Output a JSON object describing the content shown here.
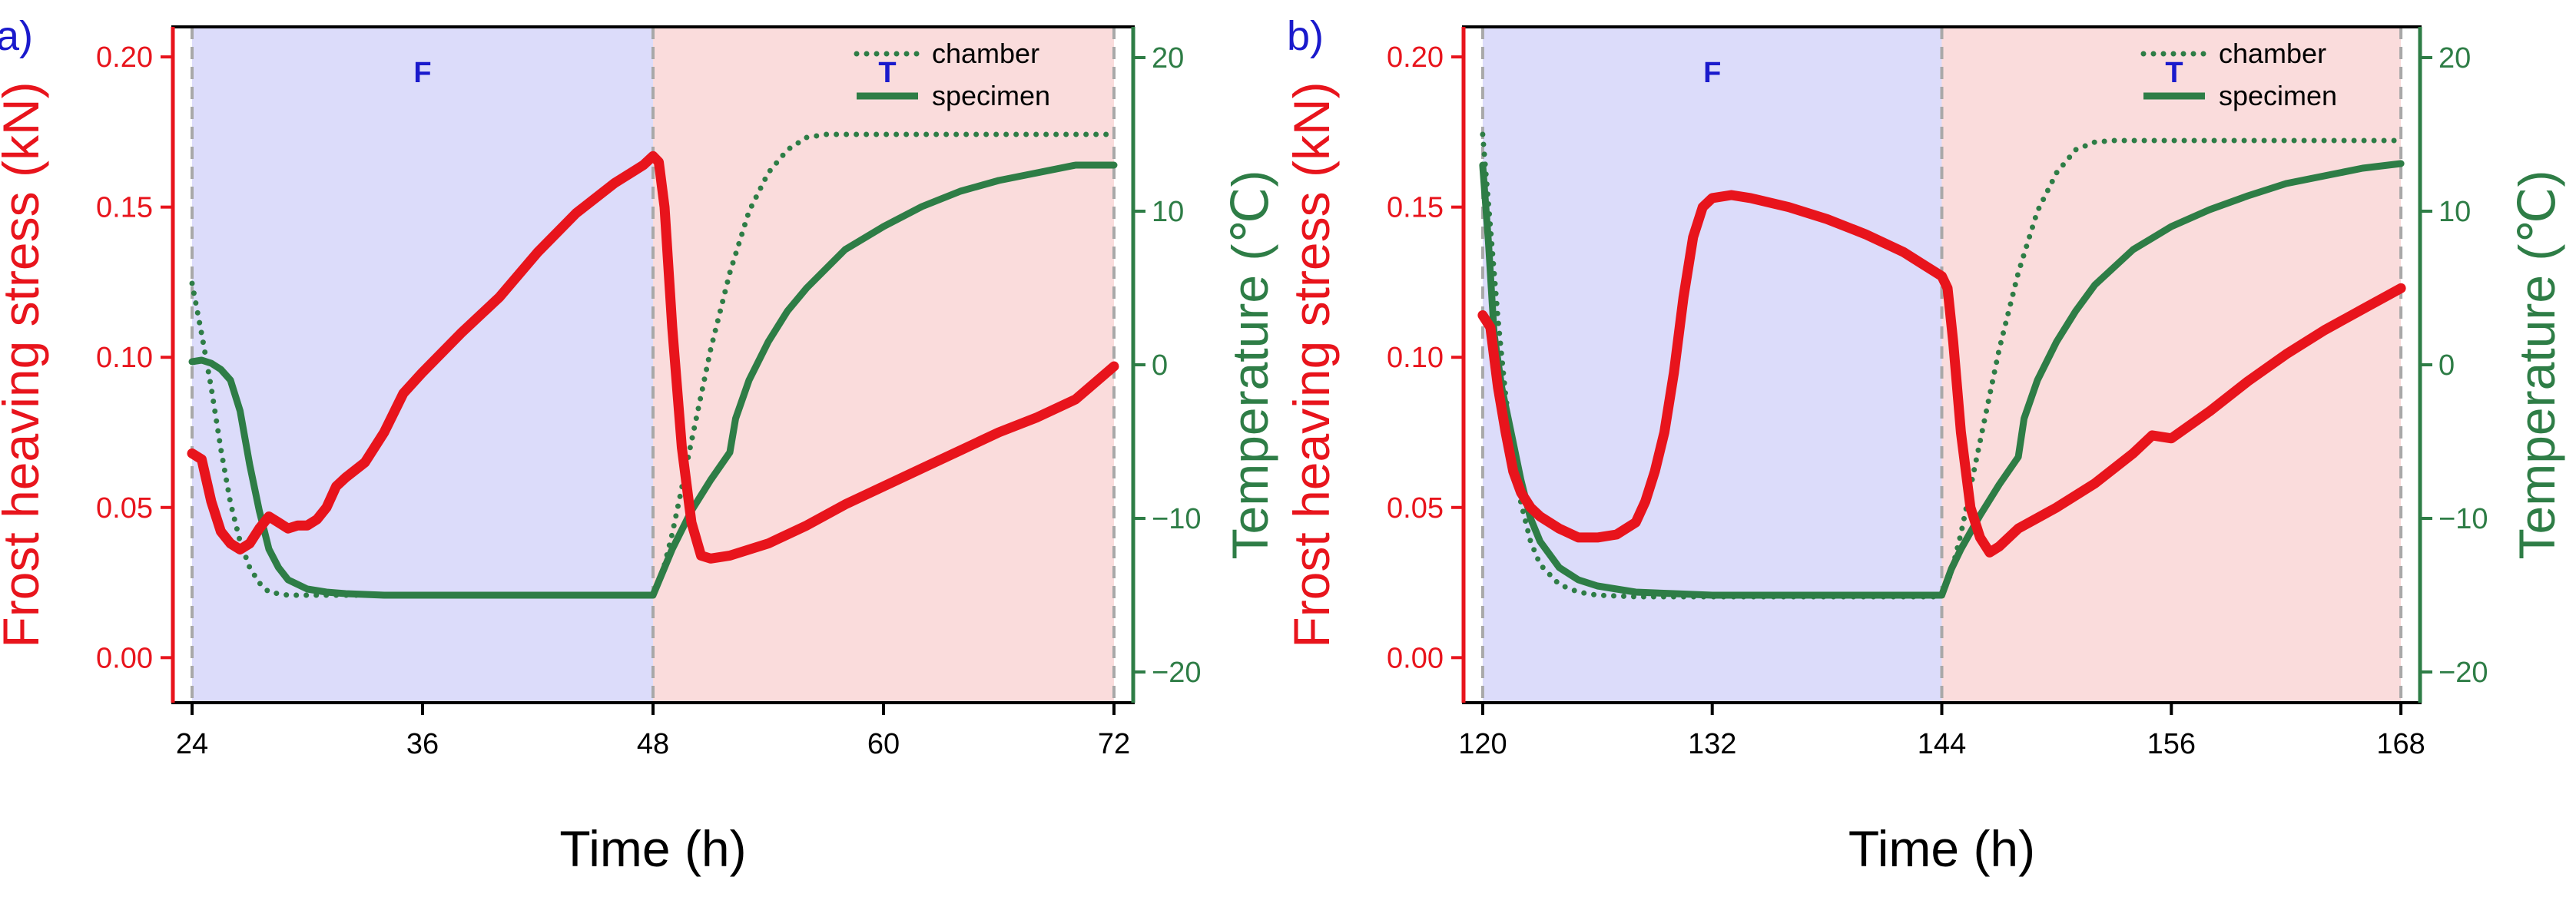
{
  "figure_title": "",
  "colors": {
    "stress": "#e8141c",
    "temperature": "#2e7d46",
    "freeze_shade": "#dcdcfa",
    "thaw_shade": "#fadcdc",
    "phase_label": "#1a1acc",
    "divider": "#a8a8a8",
    "panel_label": "#1a1acc"
  },
  "chart_data": [
    {
      "type": "line",
      "panel_label": "a)",
      "xlabel": "Time (h)",
      "ylabel_left": "Frost heaving stress (kN)",
      "ylabel_right": "Temperature (℃)",
      "xlim": [
        23,
        73
      ],
      "ylim_left": [
        -0.015,
        0.21
      ],
      "ylim_right": [
        -22,
        22
      ],
      "x_ticks": [
        24,
        36,
        48,
        60,
        72
      ],
      "y_left_ticks": [
        0.0,
        0.05,
        0.1,
        0.15,
        0.2
      ],
      "y_left_tick_labels": [
        "0.00",
        "0.05",
        "0.10",
        "0.15",
        "0.20"
      ],
      "y_right_ticks": [
        -20,
        -10,
        0,
        10,
        20
      ],
      "y_right_tick_labels": [
        "−20",
        "−10",
        "0",
        "10",
        "20"
      ],
      "phases": [
        {
          "label": "F",
          "x_start": 24,
          "x_end": 48
        },
        {
          "label": "T",
          "x_start": 48,
          "x_end": 72
        }
      ],
      "legend": {
        "position": "top-right",
        "entries": [
          "chamber",
          "specimen"
        ]
      },
      "series": [
        {
          "name": "Frost heaving stress",
          "axis": "left",
          "style": "thick-solid",
          "x": [
            24,
            24.5,
            25,
            25.5,
            26,
            26.5,
            27,
            27.5,
            28,
            28.5,
            29,
            29.5,
            30,
            30.5,
            31,
            31.5,
            32,
            33,
            34,
            35,
            36,
            38,
            40,
            42,
            44,
            46,
            47,
            47.5,
            48,
            48.3,
            48.6,
            49,
            49.5,
            50,
            50.5,
            51,
            52,
            54,
            56,
            58,
            60,
            62,
            64,
            66,
            68,
            70,
            72
          ],
          "y": [
            0.068,
            0.066,
            0.052,
            0.042,
            0.038,
            0.036,
            0.038,
            0.043,
            0.047,
            0.045,
            0.043,
            0.044,
            0.044,
            0.046,
            0.05,
            0.057,
            0.06,
            0.065,
            0.075,
            0.088,
            0.095,
            0.108,
            0.12,
            0.135,
            0.148,
            0.158,
            0.162,
            0.164,
            0.167,
            0.165,
            0.15,
            0.11,
            0.07,
            0.045,
            0.034,
            0.033,
            0.034,
            0.038,
            0.044,
            0.051,
            0.057,
            0.063,
            0.069,
            0.075,
            0.08,
            0.086,
            0.097
          ]
        },
        {
          "name": "chamber",
          "axis": "right",
          "style": "dotted",
          "x": [
            24,
            24.5,
            25,
            25.5,
            26,
            26.5,
            27,
            27.5,
            28,
            29,
            30,
            32,
            36,
            40,
            44,
            48,
            48.5,
            49,
            50,
            51,
            52,
            53,
            54,
            55,
            56,
            57,
            58,
            60,
            64,
            68,
            72
          ],
          "y": [
            5.3,
            2,
            -1.5,
            -5.5,
            -9,
            -11.5,
            -13.2,
            -14.2,
            -14.8,
            -15,
            -15,
            -15,
            -15,
            -15,
            -15,
            -15,
            -13.5,
            -11,
            -5,
            1,
            6,
            10,
            12.5,
            14,
            14.8,
            15,
            15,
            15,
            15,
            15,
            15
          ]
        },
        {
          "name": "specimen",
          "axis": "right",
          "style": "thick-solid",
          "x": [
            24,
            24.5,
            25,
            25.5,
            26,
            26.5,
            27,
            27.5,
            28,
            28.5,
            29,
            30,
            31,
            32,
            34,
            36,
            40,
            44,
            48,
            48.5,
            49,
            50,
            51,
            52,
            52.3,
            53,
            54,
            55,
            56,
            58,
            60,
            62,
            64,
            66,
            68,
            70,
            72
          ],
          "y": [
            0.2,
            0.3,
            0.1,
            -0.3,
            -1,
            -3,
            -6.5,
            -9.5,
            -12,
            -13.2,
            -14,
            -14.6,
            -14.8,
            -14.9,
            -15,
            -15,
            -15,
            -15,
            -15,
            -13.5,
            -12,
            -9.5,
            -7.5,
            -5.7,
            -3.5,
            -1,
            1.5,
            3.5,
            5,
            7.5,
            9,
            10.3,
            11.3,
            12,
            12.5,
            13,
            13
          ]
        }
      ]
    },
    {
      "type": "line",
      "panel_label": "b)",
      "xlabel": "Time (h)",
      "ylabel_left": "Frost heaving stress (kN)",
      "ylabel_right": "Temperature (℃)",
      "xlim": [
        119,
        169
      ],
      "ylim_left": [
        -0.015,
        0.21
      ],
      "ylim_right": [
        -22,
        22
      ],
      "x_ticks": [
        120,
        132,
        144,
        156,
        168
      ],
      "y_left_ticks": [
        0.0,
        0.05,
        0.1,
        0.15,
        0.2
      ],
      "y_left_tick_labels": [
        "0.00",
        "0.05",
        "0.10",
        "0.15",
        "0.20"
      ],
      "y_right_ticks": [
        -20,
        -10,
        0,
        10,
        20
      ],
      "y_right_tick_labels": [
        "−20",
        "−10",
        "0",
        "10",
        "20"
      ],
      "phases": [
        {
          "label": "F",
          "x_start": 120,
          "x_end": 144
        },
        {
          "label": "T",
          "x_start": 144,
          "x_end": 168
        }
      ],
      "legend": {
        "position": "top-right",
        "entries": [
          "chamber",
          "specimen"
        ]
      },
      "series": [
        {
          "name": "Frost heaving stress",
          "axis": "left",
          "style": "thick-solid",
          "x": [
            120,
            120.4,
            120.8,
            121.2,
            121.6,
            122,
            122.5,
            123,
            124,
            125,
            126,
            127,
            128,
            128.5,
            129,
            129.5,
            130,
            130.5,
            131,
            131.5,
            132,
            133,
            134,
            136,
            138,
            140,
            142,
            143,
            144,
            144.3,
            144.6,
            145,
            145.5,
            146,
            146.5,
            147,
            148,
            150,
            152,
            154,
            155,
            156,
            158,
            160,
            162,
            164,
            166,
            168
          ],
          "y": [
            0.114,
            0.11,
            0.09,
            0.075,
            0.062,
            0.055,
            0.05,
            0.047,
            0.043,
            0.04,
            0.04,
            0.041,
            0.045,
            0.052,
            0.062,
            0.075,
            0.095,
            0.12,
            0.14,
            0.15,
            0.153,
            0.154,
            0.153,
            0.15,
            0.146,
            0.141,
            0.135,
            0.131,
            0.127,
            0.123,
            0.105,
            0.075,
            0.05,
            0.04,
            0.035,
            0.037,
            0.043,
            0.05,
            0.058,
            0.068,
            0.074,
            0.073,
            0.082,
            0.092,
            0.101,
            0.109,
            0.116,
            0.123
          ]
        },
        {
          "name": "chamber",
          "axis": "right",
          "style": "dotted",
          "x": [
            120,
            120.4,
            120.8,
            121.2,
            121.6,
            122,
            122.5,
            123,
            124,
            125,
            126,
            128,
            132,
            136,
            140,
            144,
            144.5,
            145,
            146,
            147,
            148,
            149,
            150,
            151,
            152,
            153,
            154,
            156,
            160,
            164,
            168
          ],
          "y": [
            15,
            9,
            3,
            -2,
            -6,
            -9,
            -11.5,
            -13,
            -14.3,
            -14.8,
            -15,
            -15.1,
            -15.1,
            -15.1,
            -15.1,
            -15.1,
            -13.5,
            -11,
            -5,
            1,
            6,
            10,
            12.5,
            14,
            14.5,
            14.6,
            14.6,
            14.6,
            14.6,
            14.6,
            14.6
          ]
        },
        {
          "name": "specimen",
          "axis": "right",
          "style": "thick-solid",
          "x": [
            120,
            120.3,
            120.6,
            121,
            121.5,
            122,
            122.5,
            123,
            124,
            125,
            126,
            127,
            128,
            130,
            132,
            136,
            140,
            144,
            144.5,
            145,
            146,
            147,
            148,
            148.3,
            149,
            150,
            151,
            152,
            154,
            156,
            158,
            160,
            162,
            164,
            166,
            168
          ],
          "y": [
            13,
            8,
            2,
            -1.5,
            -4.5,
            -7.5,
            -10,
            -11.5,
            -13.2,
            -14,
            -14.4,
            -14.6,
            -14.8,
            -14.9,
            -15,
            -15,
            -15,
            -15,
            -13.3,
            -12,
            -9.8,
            -7.8,
            -6,
            -3.5,
            -1,
            1.5,
            3.5,
            5.2,
            7.5,
            9,
            10.1,
            11,
            11.8,
            12.3,
            12.8,
            13.1
          ]
        }
      ]
    }
  ]
}
